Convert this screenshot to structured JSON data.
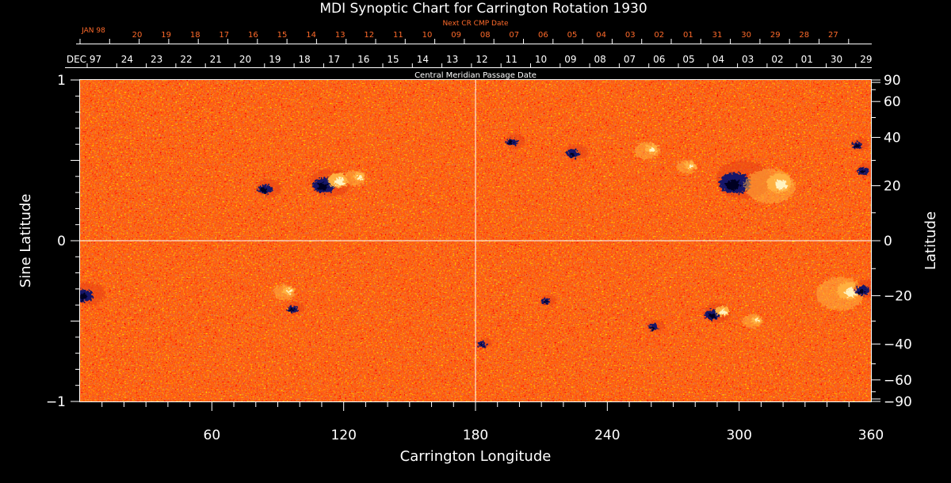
{
  "colors": {
    "background": "#000000",
    "axis": "#ffffff",
    "next_cr_text": "#ff6a2a",
    "map_base": "#ff5a14",
    "map_mid": "#e8400c",
    "map_light": "#ffb040",
    "map_white": "#fff3c0",
    "map_dark": "#14186a",
    "map_darker": "#000022"
  },
  "chart_data": {
    "type": "heatmap",
    "title": "MDI Synoptic Chart for Carrington Rotation 1930",
    "xlabel": "Carrington Longitude",
    "ylabel": "Sine Latitude",
    "y2label": "Latitude",
    "top_label": "Central Meridian Passage Date",
    "next_label": "Next CR CMP Date",
    "xlim": [
      0,
      360
    ],
    "ylim": [
      -1,
      1
    ],
    "x_ticks": [
      60,
      120,
      180,
      240,
      300,
      360
    ],
    "y_ticks": [
      {
        "value": 1,
        "label": "1"
      },
      {
        "value": 0,
        "label": "0"
      },
      {
        "value": -1,
        "label": "−1"
      }
    ],
    "lat_ticks": [
      {
        "deg": 90,
        "label": "90"
      },
      {
        "deg": 60,
        "label": "60"
      },
      {
        "deg": 40,
        "label": "40"
      },
      {
        "deg": 20,
        "label": "20"
      },
      {
        "deg": 0,
        "label": "0"
      },
      {
        "deg": -20,
        "label": "−20"
      },
      {
        "deg": -40,
        "label": "−40"
      },
      {
        "deg": -60,
        "label": "−60"
      },
      {
        "deg": -90,
        "label": "−90"
      }
    ],
    "cmp_first_label": "DEC 97",
    "cmp_dates": [
      "24",
      "23",
      "22",
      "21",
      "20",
      "19",
      "18",
      "17",
      "16",
      "15",
      "14",
      "13",
      "12",
      "11",
      "10",
      "09",
      "08",
      "07",
      "06",
      "05",
      "04",
      "03",
      "02",
      "01",
      "30",
      "29"
    ],
    "next_cr_first_label": "JAN 98",
    "next_cr_dates": [
      "20",
      "19",
      "18",
      "17",
      "16",
      "15",
      "14",
      "13",
      "12",
      "11",
      "10",
      "09",
      "08",
      "07",
      "06",
      "05",
      "04",
      "03",
      "02",
      "01",
      "31",
      "30",
      "29",
      "28",
      "27"
    ],
    "guides": {
      "x": 180,
      "y": 0
    },
    "regions": [
      {
        "lon": 86,
        "sinlat": 0.33,
        "polarity": "negative",
        "size": 1.0
      },
      {
        "lon": 114,
        "sinlat": 0.36,
        "polarity": "bipolar",
        "size": 1.6
      },
      {
        "lon": 125,
        "sinlat": 0.39,
        "polarity": "positive",
        "size": 0.9
      },
      {
        "lon": 198,
        "sinlat": 0.62,
        "polarity": "negative",
        "size": 0.8
      },
      {
        "lon": 226,
        "sinlat": 0.55,
        "polarity": "negative",
        "size": 0.9
      },
      {
        "lon": 258,
        "sinlat": 0.56,
        "polarity": "positive",
        "size": 1.0
      },
      {
        "lon": 276,
        "sinlat": 0.46,
        "polarity": "positive",
        "size": 0.8
      },
      {
        "lon": 302,
        "sinlat": 0.38,
        "polarity": "negative",
        "size": 2.2
      },
      {
        "lon": 314,
        "sinlat": 0.34,
        "polarity": "positive",
        "size": 2.0
      },
      {
        "lon": 355,
        "sinlat": 0.6,
        "polarity": "negative",
        "size": 0.7
      },
      {
        "lon": 358,
        "sinlat": 0.44,
        "polarity": "negative",
        "size": 0.8
      },
      {
        "lon": 4,
        "sinlat": -0.33,
        "polarity": "negative",
        "size": 1.3
      },
      {
        "lon": 93,
        "sinlat": -0.32,
        "polarity": "positive",
        "size": 0.9
      },
      {
        "lon": 98,
        "sinlat": -0.42,
        "polarity": "negative",
        "size": 0.7
      },
      {
        "lon": 184,
        "sinlat": -0.64,
        "polarity": "negative",
        "size": 0.6
      },
      {
        "lon": 213,
        "sinlat": -0.37,
        "polarity": "negative",
        "size": 0.6
      },
      {
        "lon": 290,
        "sinlat": -0.45,
        "polarity": "bipolar",
        "size": 1.1
      },
      {
        "lon": 306,
        "sinlat": -0.5,
        "polarity": "positive",
        "size": 0.8
      },
      {
        "lon": 346,
        "sinlat": -0.33,
        "polarity": "positive",
        "size": 1.9
      },
      {
        "lon": 358,
        "sinlat": -0.3,
        "polarity": "negative",
        "size": 1.0
      },
      {
        "lon": 262,
        "sinlat": -0.53,
        "polarity": "negative",
        "size": 0.7
      }
    ]
  }
}
